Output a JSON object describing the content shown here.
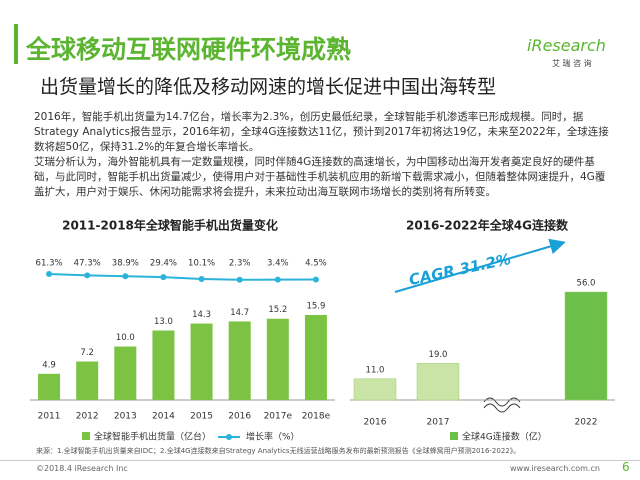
{
  "logo": {
    "name": "iResearch",
    "tagline": "艾 瑞 咨 询"
  },
  "header": {
    "title": "全球移动互联网硬件环境成熟",
    "subtitle": "出货量增长的降低及移动网速的增长促进中国出海转型"
  },
  "body": {
    "paragraphs": [
      "2016年，智能手机出货量为14.7亿台，增长率为2.3%，创历史最低纪录，全球智能手机渗透率已形成规模。同时，据Strategy Analytics报告显示，2016年初，全球4G连接数达11亿，预计到2017年初将达19亿，未来至2022年，全球连接数将超50亿，保持31.2%的年复合增长率增长。",
      "艾瑞分析认为，海外智能机具有一定数量规模，同时伴随4G连接数的高速增长，为中国移动出海开发者奠定良好的硬件基础，与此同时，智能手机出货量减少，使得用户对于基础性手机装机应用的新增下载需求减小，但随着整体网速提升，4G覆盖扩大，用户对于娱乐、休闲功能需求将会提升，未来拉动出海互联网市场增长的类别将有所转变。"
    ]
  },
  "chart_data": [
    {
      "type": "combo",
      "title": "2011-2018年全球智能手机出货量变化",
      "categories": [
        "2011",
        "2012",
        "2013",
        "2014",
        "2015",
        "2016",
        "2017e",
        "2018e"
      ],
      "series": [
        {
          "name": "全球智能手机出货量（亿台）",
          "type": "bar",
          "color": "#7cc243",
          "values": [
            4.9,
            7.2,
            10.0,
            13.0,
            14.3,
            14.7,
            15.2,
            15.9
          ],
          "value_labels": [
            "4.9",
            "7.2",
            "10.0",
            "13.0",
            "14.3",
            "14.7",
            "15.2",
            "15.9"
          ]
        },
        {
          "name": "增长率（%）",
          "type": "line",
          "color": "#2bb3d9",
          "values": [
            61.3,
            47.3,
            38.9,
            29.4,
            10.1,
            2.3,
            3.4,
            4.5
          ],
          "value_labels": [
            "61.3%",
            "47.3%",
            "38.9%",
            "29.4%",
            "10.1%",
            "2.3%",
            "3.4%",
            "4.5%"
          ]
        }
      ]
    },
    {
      "type": "bar",
      "title": "2016-2022年全球4G连接数",
      "categories": [
        "2016",
        "2017",
        "2022"
      ],
      "series": [
        {
          "name": "全球4G连接数（亿）",
          "color": "#c9e4a6",
          "highlight_color": "#6cc04a",
          "values": [
            11.0,
            19.0,
            56.0
          ],
          "value_labels": [
            "11.0",
            "19.0",
            "56.0"
          ]
        }
      ],
      "annotation": "CAGR 31.2%"
    }
  ],
  "footer": {
    "source": "来源：1.全球智能手机出货量来自IDC；2.全球4G连接数来自Strategy Analytics无线运营战略服务发布的最新预测报告《全球蜂窝用户预测2016-2022》。",
    "copyright": "©2018.4 iResearch Inc",
    "url": "www.iresearch.com.cn",
    "page": "6"
  }
}
